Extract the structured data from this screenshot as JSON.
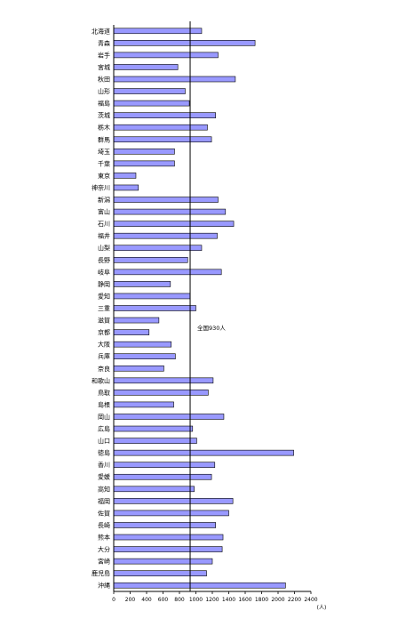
{
  "chart_data": {
    "type": "bar",
    "orientation": "horizontal",
    "categories": [
      "北海道",
      "青森",
      "岩手",
      "宮城",
      "秋田",
      "山形",
      "福島",
      "茨城",
      "栃木",
      "群馬",
      "埼玉",
      "千葉",
      "東京",
      "神奈川",
      "新潟",
      "富山",
      "石川",
      "福井",
      "山梨",
      "長野",
      "岐阜",
      "静岡",
      "愛知",
      "三重",
      "滋賀",
      "京都",
      "大阪",
      "兵庫",
      "奈良",
      "和歌山",
      "鳥取",
      "島根",
      "岡山",
      "広島",
      "山口",
      "徳島",
      "香川",
      "愛媛",
      "高知",
      "福岡",
      "佐賀",
      "長崎",
      "熊本",
      "大分",
      "宮崎",
      "鹿児島",
      "沖縄"
    ],
    "values": [
      1070,
      1720,
      1270,
      780,
      1480,
      870,
      920,
      1240,
      1140,
      1190,
      740,
      740,
      270,
      300,
      1270,
      1360,
      1460,
      1260,
      1070,
      900,
      1310,
      690,
      930,
      1000,
      550,
      430,
      700,
      750,
      610,
      1210,
      1150,
      730,
      1340,
      960,
      1010,
      2190,
      1230,
      1190,
      980,
      1450,
      1400,
      1240,
      1330,
      1320,
      1200,
      1130,
      2090
    ],
    "xlim": [
      0,
      2400
    ],
    "xticks": [
      0,
      200,
      400,
      600,
      800,
      1000,
      1200,
      1400,
      1600,
      1800,
      2000,
      2200,
      2400
    ],
    "xunit": "(人)",
    "reference_line": 930,
    "annotation": "全国930人",
    "colors": {
      "bar_fill": "#9999ff",
      "bar_stroke": "#000000",
      "line": "#000000"
    }
  }
}
